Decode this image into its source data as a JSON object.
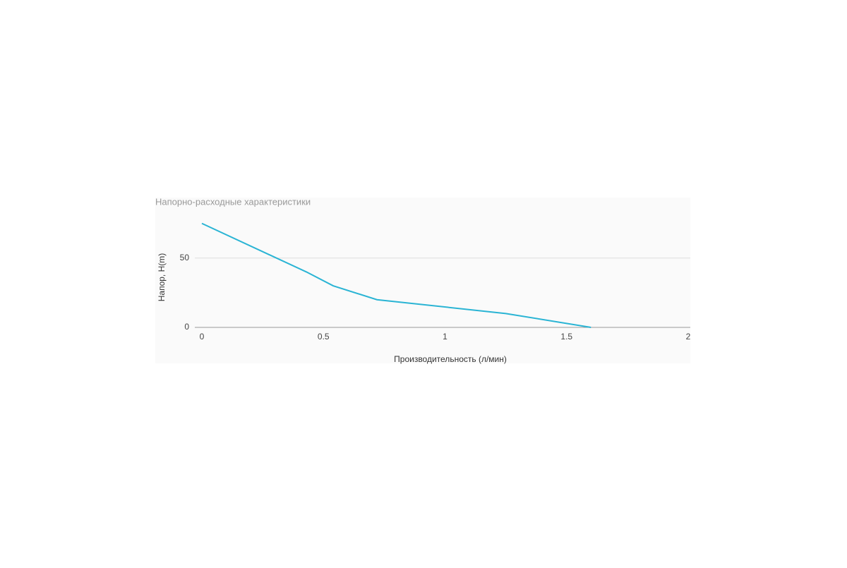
{
  "chart_data": {
    "type": "line",
    "title": "Напорно-расходные характеристики",
    "x_label": "Производительность (л/мин)",
    "y_label": "Напор, H(m)",
    "x": [
      0,
      0.43,
      0.54,
      0.72,
      1.25,
      1.6
    ],
    "values": [
      75,
      40,
      30,
      20,
      10,
      0
    ],
    "color": "#2ab4d4",
    "xlim": [
      0,
      2
    ],
    "xticks": [
      0,
      0.5,
      1,
      1.5,
      2
    ],
    "ylim": [
      0,
      85
    ],
    "yticks": [
      0,
      50
    ],
    "grid": true
  }
}
